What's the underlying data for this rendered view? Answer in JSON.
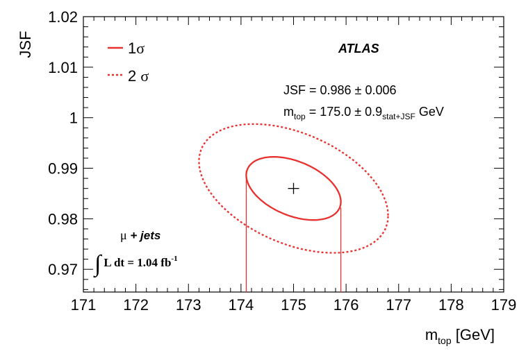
{
  "chart_data": {
    "type": "contour",
    "xlabel": {
      "main": "m",
      "sub": "top",
      "unit": "[GeV]"
    },
    "ylabel": "JSF",
    "xlim": [
      171,
      179
    ],
    "ylim": [
      0.9655,
      1.02
    ],
    "x_ticks": [
      171,
      172,
      173,
      174,
      175,
      176,
      177,
      178,
      179
    ],
    "x_tick_labels": [
      "171",
      "172",
      "173",
      "174",
      "175",
      "176",
      "177",
      "178",
      "179"
    ],
    "y_ticks": [
      0.97,
      0.98,
      0.99,
      1.0,
      1.01,
      1.02
    ],
    "y_tick_labels": [
      "0.97",
      "0.98",
      "0.99",
      "1",
      "1.01",
      "1.02"
    ],
    "best_fit": {
      "x": 175.0,
      "y": 0.986
    },
    "series": [
      {
        "name": "1σ",
        "style": "solid",
        "color": "#e8312f",
        "contour_level": 1,
        "x_range": [
          174.1,
          175.9
        ],
        "y_range": [
          0.9797,
          0.9922
        ]
      },
      {
        "name": "2σ",
        "style": "dashed",
        "color": "#e8312f",
        "contour_level": 2,
        "x_range": [
          173.2,
          176.8
        ],
        "y_range": [
          0.973,
          0.9985
        ]
      }
    ],
    "projection_lines": [
      174.1,
      175.9
    ],
    "legend": {
      "placement": "top-left",
      "entries": [
        {
          "label": "1",
          "symbol": "σ",
          "style": "solid"
        },
        {
          "label": "2",
          "symbol": "σ",
          "style": "dashed"
        }
      ]
    },
    "annotations": {
      "atlas": "ATLAS",
      "jsf_result": "JSF = 0.986 ± 0.006",
      "mtop_result": {
        "prefix": "m",
        "prefix_sub": "top",
        "value": " = 175.0 ± 0.9",
        "value_sub": "stat+JSF",
        "unit": " GeV"
      },
      "channel": {
        "symbol": "μ",
        "text": " + jets"
      },
      "lumi": {
        "integral": "∫",
        "text": "L dt = 1.04 fb",
        "superscript": "-1"
      }
    },
    "grid": false
  },
  "colors": {
    "contour": "#e8312f",
    "axis": "#000000"
  }
}
